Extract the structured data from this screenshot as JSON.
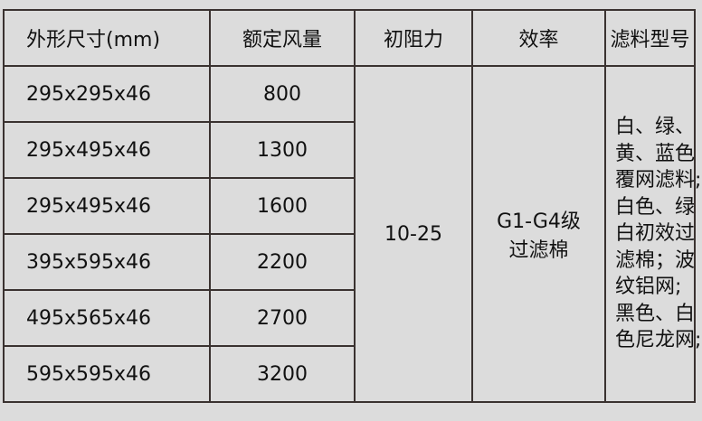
{
  "headers": [
    "外形尺寸(mm)",
    "额定风量",
    "初阻力",
    "效率",
    "滤料型号"
  ],
  "rows": [
    {
      "size": "295x295x46",
      "airflow": "800"
    },
    {
      "size": "295x495x46",
      "airflow": "1300"
    },
    {
      "size": "295x495x46",
      "airflow": "1600"
    },
    {
      "size": "395x595x46",
      "airflow": "2200"
    },
    {
      "size": "495x565x46",
      "airflow": "2700"
    },
    {
      "size": "595x595x46",
      "airflow": "3200"
    }
  ],
  "resistance": "10-25",
  "efficiency": [
    "G1-G4级",
    "过滤棉"
  ],
  "media_lines": [
    "白、绿、",
    "黄、蓝色",
    "覆网滤料;",
    "白色、绿",
    "白初效过",
    "滤棉；波",
    "纹铝网;",
    "黑色、白",
    "色尼龙网;"
  ]
}
